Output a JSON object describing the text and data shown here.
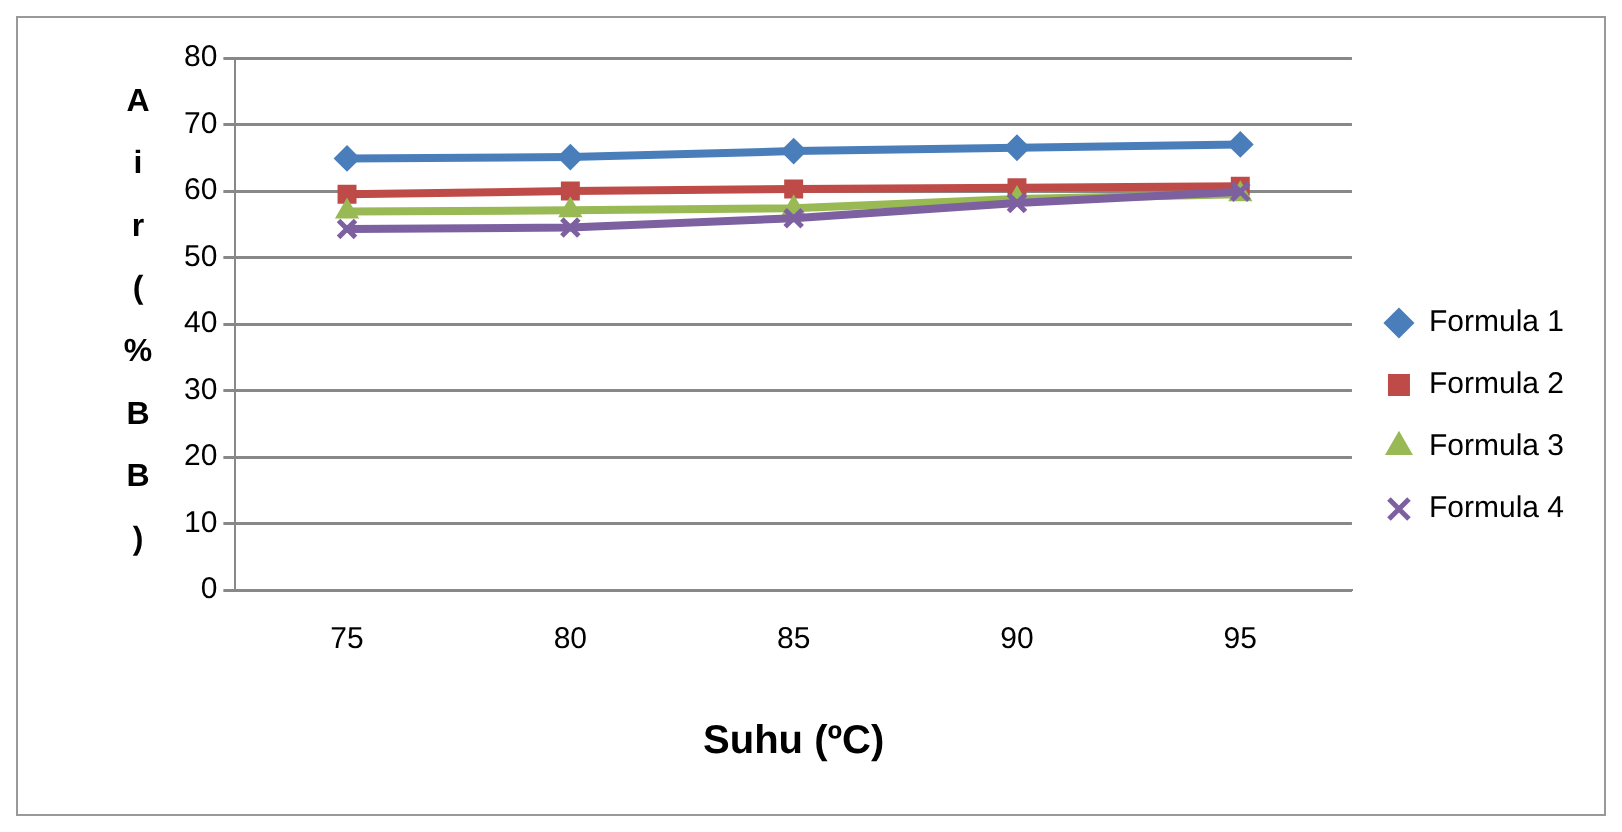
{
  "chart_data": {
    "type": "line",
    "xlabel": "Suhu (ºC)",
    "ylabel": "Air (%BB)",
    "categories": [
      "75",
      "80",
      "85",
      "90",
      "95"
    ],
    "series": [
      {
        "name": "Formula 1",
        "color": "#4a7ebb",
        "marker": "diamond",
        "values": [
          64.9,
          65.1,
          66.0,
          66.5,
          67.0
        ]
      },
      {
        "name": "Formula 2",
        "color": "#be4b48",
        "marker": "square",
        "values": [
          59.5,
          60.0,
          60.3,
          60.5,
          60.7
        ]
      },
      {
        "name": "Formula 3",
        "color": "#98b954",
        "marker": "triangle",
        "values": [
          56.9,
          57.1,
          57.4,
          58.8,
          59.5
        ]
      },
      {
        "name": "Formula 4",
        "color": "#7d60a0",
        "marker": "cross",
        "values": [
          54.3,
          54.5,
          55.9,
          58.2,
          59.9
        ]
      }
    ],
    "ylim": [
      0,
      80
    ],
    "yticks": [
      0,
      10,
      20,
      30,
      40,
      50,
      60,
      70,
      80
    ],
    "grid": "y",
    "legend": "right",
    "line_style": "solid"
  }
}
